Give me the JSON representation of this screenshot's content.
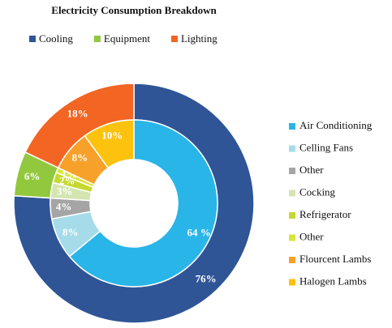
{
  "chart_data": {
    "type": "donut",
    "title": "Electricity Consumption Breakdown",
    "rings": [
      {
        "categories": [
          "Cooling",
          "Equipment",
          "Lighting"
        ],
        "values": [
          76,
          6,
          18
        ],
        "value_labels": [
          "76%",
          "6%",
          "18%"
        ],
        "colors": [
          "#2f5597",
          "#92c83e",
          "#f26522"
        ],
        "legend": "top"
      },
      {
        "categories": [
          "Air Conditioning",
          "Celling Fans",
          "Other",
          "Cocking",
          "Refrigerator",
          "Other",
          "Flourcent Lambs",
          "Halogen Lambs"
        ],
        "values": [
          64,
          8,
          4,
          3,
          2,
          1,
          8,
          10
        ],
        "value_labels": [
          "64 %",
          "8%",
          "4%",
          "3%",
          "2%",
          "1%",
          "8%",
          "10%"
        ],
        "colors": [
          "#29b5e8",
          "#a6dcea",
          "#a5a5a5",
          "#d4e5b0",
          "#c5d82e",
          "#d9e43a",
          "#f7a12b",
          "#fcc20e"
        ],
        "legend": "right"
      }
    ]
  }
}
